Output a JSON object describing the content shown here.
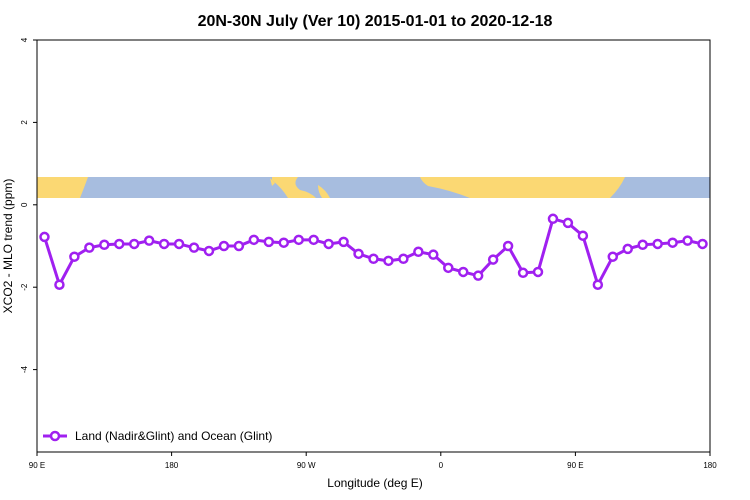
{
  "chart_data": {
    "type": "line",
    "title": "20N-30N July (Ver 10)   2015-01-01 to 2020-12-18",
    "x_label": "Longitude (deg E)",
    "y_label": "XCO2 - MLO trend (ppm)",
    "x": [
      95,
      105,
      115,
      125,
      135,
      145,
      155,
      165,
      175,
      185,
      195,
      205,
      215,
      225,
      235,
      245,
      255,
      265,
      275,
      285,
      295,
      305,
      315,
      325,
      335,
      345,
      355,
      365,
      375,
      385,
      395,
      405,
      415,
      425,
      435,
      445,
      455,
      465,
      475,
      485,
      495,
      505,
      515,
      525,
      535
    ],
    "series": [
      {
        "name": "Land (Nadir&Glint) and Ocean (Glint)",
        "color": "#a020f0",
        "values": [
          -0.78,
          -1.94,
          -1.26,
          -1.04,
          -0.97,
          -0.95,
          -0.95,
          -0.87,
          -0.95,
          -0.95,
          -1.04,
          -1.12,
          -1.0,
          -1.0,
          -0.85,
          -0.9,
          -0.92,
          -0.85,
          -0.85,
          -0.95,
          -0.9,
          -1.19,
          -1.31,
          -1.36,
          -1.31,
          -1.14,
          -1.21,
          -1.53,
          -1.63,
          -1.72,
          -1.33,
          -1.0,
          -1.65,
          -1.63,
          -0.34,
          -0.44,
          -0.75,
          -1.94,
          -1.26,
          -1.07,
          -0.97,
          -0.95,
          -0.92,
          -0.87,
          -0.95
        ]
      }
    ],
    "xlim": [
      90,
      540
    ],
    "xticks": [
      {
        "value": 90,
        "label": "90 E"
      },
      180,
      {
        "value": 270,
        "label": "90 W"
      },
      {
        "value": 360,
        "label": "0"
      },
      {
        "value": 450,
        "label": "90 E"
      },
      {
        "value": 540,
        "label": "180"
      }
    ],
    "ylim": [
      -6,
      4
    ],
    "yticks": [
      4,
      2,
      0,
      -2,
      -4
    ],
    "legend": "bottom-left",
    "grid": false
  }
}
